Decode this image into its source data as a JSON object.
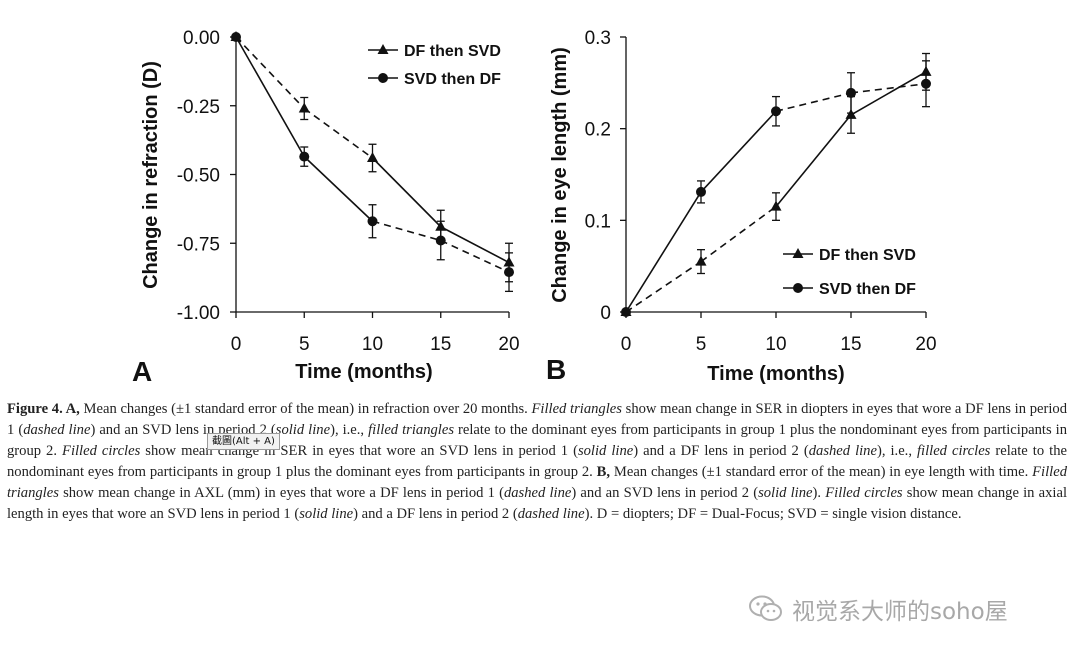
{
  "chart_data": [
    {
      "panel": "A",
      "type": "line",
      "xlabel": "Time (months)",
      "ylabel": "Change in refraction (D)",
      "x": [
        0,
        5,
        10,
        15,
        20
      ],
      "xlim": [
        0,
        20
      ],
      "ylim": [
        -1.0,
        0.0
      ],
      "xticks": [
        "0",
        "5",
        "10",
        "15",
        "20"
      ],
      "yticks": [
        "0.00",
        "-0.25",
        "-0.50",
        "-0.75",
        "-1.00"
      ],
      "ytick_values": [
        0,
        -0.25,
        -0.5,
        -0.75,
        -1.0
      ],
      "legend_position": "top-right",
      "series": [
        {
          "name": "DF then SVD",
          "marker": "triangle",
          "values": [
            0,
            -0.26,
            -0.44,
            -0.69,
            -0.82
          ],
          "errors": [
            0,
            0.04,
            0.05,
            0.06,
            0.07
          ],
          "segment_styles": [
            "dashed",
            "dashed",
            "solid",
            "solid"
          ]
        },
        {
          "name": "SVD then DF",
          "marker": "circle",
          "values": [
            0,
            -0.435,
            -0.67,
            -0.74,
            -0.855
          ],
          "errors": [
            0,
            0.035,
            0.06,
            0.07,
            0.07
          ],
          "segment_styles": [
            "solid",
            "solid",
            "dashed",
            "dashed"
          ]
        }
      ]
    },
    {
      "panel": "B",
      "type": "line",
      "xlabel": "Time (months)",
      "ylabel": "Change in eye length (mm)",
      "x": [
        0,
        5,
        10,
        15,
        20
      ],
      "xlim": [
        0,
        20
      ],
      "ylim": [
        0,
        0.3
      ],
      "xticks": [
        "0",
        "5",
        "10",
        "15",
        "20"
      ],
      "yticks": [
        "0",
        "0.1",
        "0.2",
        "0.3"
      ],
      "ytick_values": [
        0,
        0.1,
        0.2,
        0.3
      ],
      "legend_position": "bottom-right",
      "series": [
        {
          "name": "DF then SVD",
          "marker": "triangle",
          "values": [
            0,
            0.055,
            0.115,
            0.215,
            0.262
          ],
          "errors": [
            0,
            0.013,
            0.015,
            0.02,
            0.02
          ],
          "segment_styles": [
            "dashed",
            "dashed",
            "solid",
            "solid"
          ]
        },
        {
          "name": "SVD then DF",
          "marker": "circle",
          "values": [
            0,
            0.131,
            0.219,
            0.239,
            0.249
          ],
          "errors": [
            0,
            0.012,
            0.016,
            0.022,
            0.025
          ],
          "segment_styles": [
            "solid",
            "solid",
            "dashed",
            "dashed"
          ]
        }
      ]
    }
  ],
  "caption": {
    "label": "Figure 4.",
    "runs": [
      [
        "b",
        "Figure 4."
      ],
      [
        "b",
        " A,"
      ],
      [
        "n",
        " Mean changes (±1 standard error of the mean) in refraction over 20 months. "
      ],
      [
        "i",
        "Filled triangles"
      ],
      [
        "n",
        " show mean change in SER in diopters in eyes that wore a DF lens in period 1 ("
      ],
      [
        "i",
        "dashed line"
      ],
      [
        "n",
        ") and an SVD lens in period 2 ("
      ],
      [
        "i",
        "solid line"
      ],
      [
        "n",
        "), i.e., "
      ],
      [
        "i",
        "filled triangles"
      ],
      [
        "n",
        " relate to the dominant eyes from participants in group 1 plus the nondominant eyes from participants in group 2. "
      ],
      [
        "i",
        "Filled circles"
      ],
      [
        "n",
        " show mean change in SER in eyes that wore an SVD lens in period 1 ("
      ],
      [
        "i",
        "solid line"
      ],
      [
        "n",
        ") and a DF lens in period 2 ("
      ],
      [
        "i",
        "dashed line"
      ],
      [
        "n",
        "), i.e., "
      ],
      [
        "i",
        "filled circles"
      ],
      [
        "n",
        " relate to the nondominant eyes from participants in group 1 plus the dominant eyes from participants in group 2. "
      ],
      [
        "b",
        "B,"
      ],
      [
        "n",
        " Mean changes (±1 standard error of the mean) in eye length with time. "
      ],
      [
        "i",
        "Filled triangles"
      ],
      [
        "n",
        " show mean change in AXL (mm) in eyes that wore a DF lens in period 1 ("
      ],
      [
        "i",
        "dashed line"
      ],
      [
        "n",
        ") and an SVD lens in period 2 ("
      ],
      [
        "i",
        "solid line"
      ],
      [
        "n",
        "). "
      ],
      [
        "i",
        "Filled circles"
      ],
      [
        "n",
        " show mean change in axial length in eyes that wore an SVD lens in period 1 ("
      ],
      [
        "i",
        "solid line"
      ],
      [
        "n",
        ") and a DF lens in period 2 ("
      ],
      [
        "i",
        "dashed line"
      ],
      [
        "n",
        "). D = diopters; DF = Dual-Focus; SVD = single vision distance."
      ]
    ]
  },
  "tooltip": "截圖(Alt + A)",
  "watermark": {
    "text": "视觉系大师的soho屋",
    "icon": "wechat-icon"
  },
  "colors": {
    "ink": "#111111",
    "caption": "#222222",
    "watermark": "#a8a8a8"
  }
}
